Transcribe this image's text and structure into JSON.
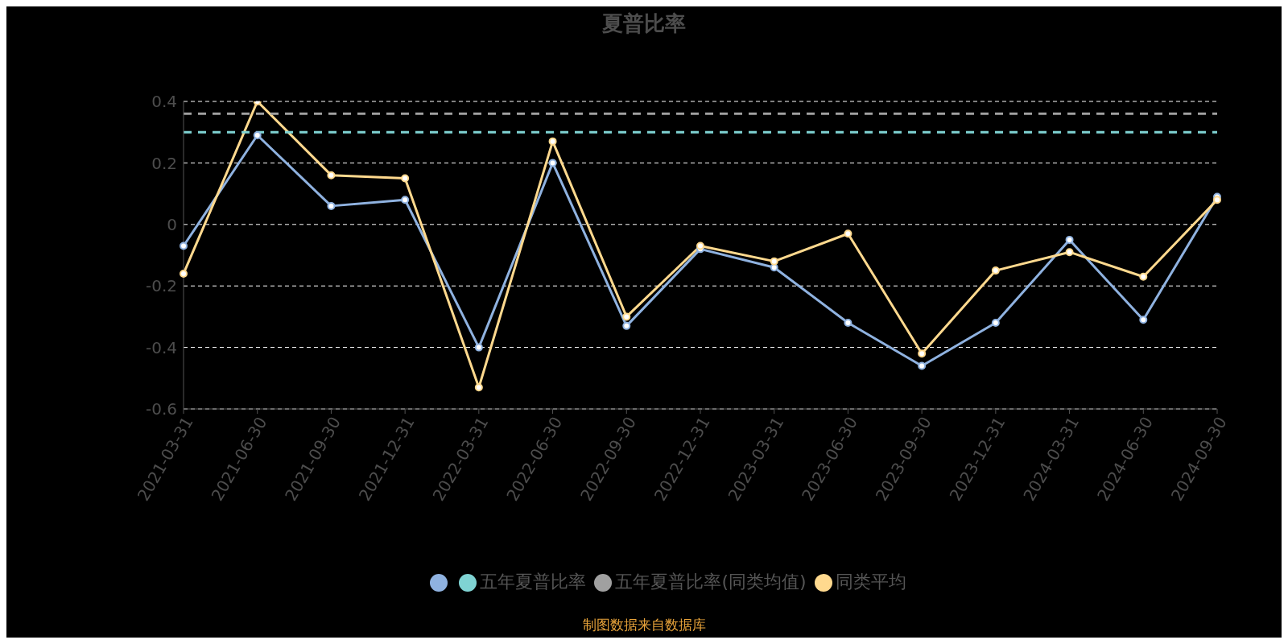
{
  "chart_data": {
    "type": "line",
    "title": "夏普比率",
    "categories": [
      "2021-03-31",
      "2021-06-30",
      "2021-09-30",
      "2021-12-31",
      "2022-03-31",
      "2022-06-30",
      "2022-09-30",
      "2022-12-31",
      "2023-03-31",
      "2023-06-30",
      "2023-09-30",
      "2023-12-31",
      "2024-03-31",
      "2024-06-30",
      "2024-09-30"
    ],
    "series": [
      {
        "color": "#8fb2e0",
        "values": [
          -0.07,
          0.29,
          0.06,
          0.08,
          -0.4,
          0.2,
          -0.33,
          -0.08,
          -0.14,
          -0.32,
          -0.46,
          -0.32,
          -0.05,
          -0.31,
          0.09
        ]
      },
      {
        "name": "同类平均",
        "color": "#ffd98e",
        "values": [
          -0.16,
          0.4,
          0.16,
          0.15,
          -0.53,
          0.27,
          -0.3,
          -0.07,
          -0.12,
          -0.03,
          -0.42,
          -0.15,
          -0.09,
          -0.17,
          0.08
        ]
      },
      {
        "name": "五年夏普比率",
        "color": "#7fd3d3",
        "line_style": "dashed",
        "marker": "none",
        "values": [
          0.3,
          0.3,
          0.3,
          0.3,
          0.3,
          0.3,
          0.3,
          0.3,
          0.3,
          0.3,
          0.3,
          0.3,
          0.3,
          0.3,
          0.3
        ]
      },
      {
        "name": "五年夏普比率(同类均值)",
        "color": "#a0a0a0",
        "line_style": "dashed",
        "marker": "none",
        "values": [
          0.36,
          0.36,
          0.36,
          0.36,
          0.36,
          0.36,
          0.36,
          0.36,
          0.36,
          0.36,
          0.36,
          0.36,
          0.36,
          0.36,
          0.36
        ]
      }
    ],
    "ylim": [
      -0.6,
      0.4
    ],
    "yticks": [
      -0.6,
      -0.4,
      -0.2,
      0,
      0.2,
      0.4
    ],
    "grid": "y",
    "legend": "bottom",
    "marker": "circle",
    "line_style": "solid",
    "annotations": [
      "制图数据来自数据库"
    ]
  }
}
